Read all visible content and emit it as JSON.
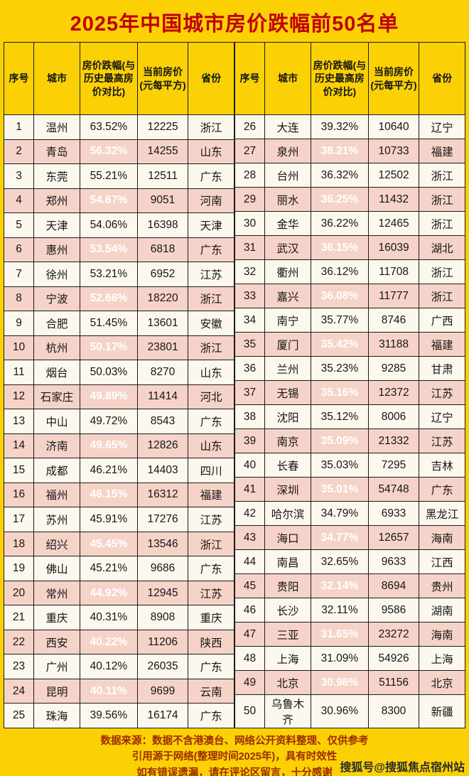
{
  "chart_data": {
    "type": "table",
    "title": "2025年中国城市房价跌幅前50名单",
    "columns": [
      "序号",
      "城市",
      "房价跌幅(与历史最高房价对比)",
      "当前房价(元每平方)",
      "省份"
    ],
    "rows": [
      [
        1,
        "温州",
        "63.52%",
        12225,
        "浙江"
      ],
      [
        2,
        "青岛",
        "56.32%",
        14255,
        "山东"
      ],
      [
        3,
        "东莞",
        "55.21%",
        12511,
        "广东"
      ],
      [
        4,
        "郑州",
        "54.67%",
        9051,
        "河南"
      ],
      [
        5,
        "天津",
        "54.06%",
        16398,
        "天津"
      ],
      [
        6,
        "惠州",
        "53.54%",
        6818,
        "广东"
      ],
      [
        7,
        "徐州",
        "53.21%",
        6952,
        "江苏"
      ],
      [
        8,
        "宁波",
        "52.66%",
        18220,
        "浙江"
      ],
      [
        9,
        "合肥",
        "51.45%",
        13601,
        "安徽"
      ],
      [
        10,
        "杭州",
        "50.17%",
        23801,
        "浙江"
      ],
      [
        11,
        "烟台",
        "50.03%",
        8270,
        "山东"
      ],
      [
        12,
        "石家庄",
        "49.89%",
        11414,
        "河北"
      ],
      [
        13,
        "中山",
        "49.72%",
        8543,
        "广东"
      ],
      [
        14,
        "济南",
        "49.65%",
        12826,
        "山东"
      ],
      [
        15,
        "成都",
        "46.21%",
        14403,
        "四川"
      ],
      [
        16,
        "福州",
        "46.15%",
        16312,
        "福建"
      ],
      [
        17,
        "苏州",
        "45.91%",
        17276,
        "江苏"
      ],
      [
        18,
        "绍兴",
        "45.45%",
        13546,
        "浙江"
      ],
      [
        19,
        "佛山",
        "45.21%",
        9686,
        "广东"
      ],
      [
        20,
        "常州",
        "44.92%",
        12945,
        "江苏"
      ],
      [
        21,
        "重庆",
        "40.31%",
        8908,
        "重庆"
      ],
      [
        22,
        "西安",
        "40.22%",
        11206,
        "陕西"
      ],
      [
        23,
        "广州",
        "40.12%",
        26035,
        "广东"
      ],
      [
        24,
        "昆明",
        "40.11%",
        9699,
        "云南"
      ],
      [
        25,
        "珠海",
        "39.56%",
        16174,
        "广东"
      ],
      [
        26,
        "大连",
        "39.32%",
        10640,
        "辽宁"
      ],
      [
        27,
        "泉州",
        "38.21%",
        10733,
        "福建"
      ],
      [
        28,
        "台州",
        "36.32%",
        12502,
        "浙江"
      ],
      [
        29,
        "丽水",
        "36.25%",
        11432,
        "浙江"
      ],
      [
        30,
        "金华",
        "36.22%",
        12465,
        "浙江"
      ],
      [
        31,
        "武汉",
        "36.15%",
        16039,
        "湖北"
      ],
      [
        32,
        "衢州",
        "36.12%",
        11708,
        "浙江"
      ],
      [
        33,
        "嘉兴",
        "36.08%",
        11777,
        "浙江"
      ],
      [
        34,
        "南宁",
        "35.77%",
        8746,
        "广西"
      ],
      [
        35,
        "厦门",
        "35.42%",
        31188,
        "福建"
      ],
      [
        36,
        "兰州",
        "35.23%",
        9285,
        "甘肃"
      ],
      [
        37,
        "无锡",
        "35.16%",
        12372,
        "江苏"
      ],
      [
        38,
        "沈阳",
        "35.12%",
        8006,
        "辽宁"
      ],
      [
        39,
        "南京",
        "35.09%",
        21332,
        "江苏"
      ],
      [
        40,
        "长春",
        "35.03%",
        7295,
        "吉林"
      ],
      [
        41,
        "深圳",
        "35.01%",
        54748,
        "广东"
      ],
      [
        42,
        "哈尔滨",
        "34.79%",
        6933,
        "黑龙江"
      ],
      [
        43,
        "海口",
        "34.77%",
        12657,
        "海南"
      ],
      [
        44,
        "南昌",
        "32.65%",
        9633,
        "江西"
      ],
      [
        45,
        "贵阳",
        "32.14%",
        8694,
        "贵州"
      ],
      [
        46,
        "长沙",
        "32.11%",
        9586,
        "湖南"
      ],
      [
        47,
        "三亚",
        "31.65%",
        23272,
        "海南"
      ],
      [
        48,
        "上海",
        "31.09%",
        54926,
        "上海"
      ],
      [
        49,
        "北京",
        "30.98%",
        51156,
        "北京"
      ],
      [
        50,
        "乌鲁木齐",
        "30.96%",
        8300,
        "新疆"
      ]
    ],
    "highlight_rule": "every second row within each half has the decline cell filled red",
    "colors": {
      "background": "#fbd106",
      "title": "#bf0008",
      "highlight_red": "#e8271b",
      "row_light": "#fcf8ee",
      "row_pink": "#f6d3c8",
      "footer_text": "#9c2c00"
    }
  },
  "footer": {
    "lines": [
      "数据来源：数据不含港澳台、网络公开资料整理、仅供参考",
      "引用源于网络(整理时间2025年)，具有时效性",
      "如有错误遗漏，请在评论区留言，十分感谢"
    ]
  },
  "watermark": "搜狐号@搜狐焦点宿州站"
}
